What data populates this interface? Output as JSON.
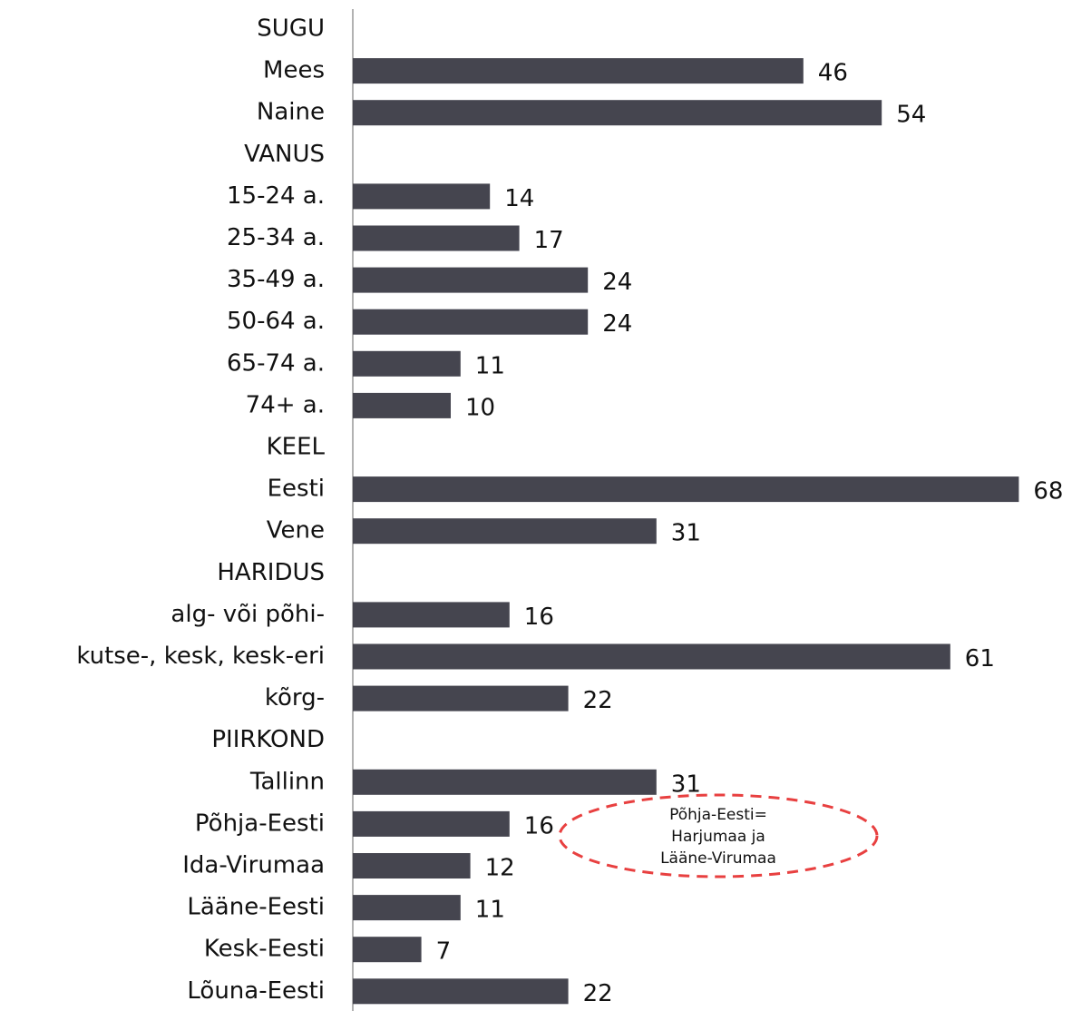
{
  "chart_data": {
    "type": "bar",
    "orientation": "horizontal",
    "categories": [
      "SUGU",
      "Mees",
      "Naine",
      "VANUS",
      "15-24 a.",
      "25-34 a.",
      "35-49 a.",
      "50-64 a.",
      "65-74 a.",
      "74+ a.",
      "KEEL",
      "Eesti",
      "Vene",
      "HARIDUS",
      "alg- või põhi-",
      "kutse-, kesk, kesk-eri",
      "kõrg-",
      "PIIRKOND",
      "Tallinn",
      "Põhja-Eesti",
      "Ida-Virumaa",
      "Lääne-Eesti",
      "Kesk-Eesti",
      "Lõuna-Eesti"
    ],
    "values": [
      null,
      46,
      54,
      null,
      14,
      17,
      24,
      24,
      11,
      10,
      null,
      68,
      31,
      null,
      16,
      61,
      22,
      null,
      31,
      16,
      12,
      11,
      7,
      22
    ],
    "color": "#45454f",
    "xlim": [
      0,
      70
    ],
    "annotation": [
      "Põhja-Eesti=",
      "Harjumaa ja",
      "Lääne-Virumaa"
    ]
  }
}
